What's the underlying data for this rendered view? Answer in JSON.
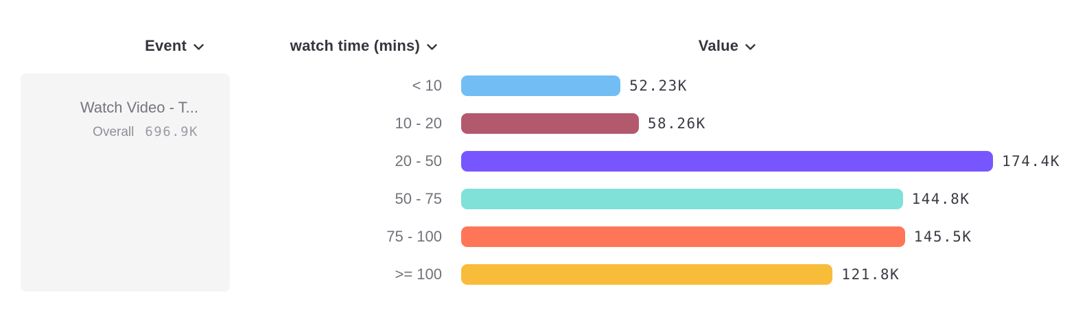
{
  "headers": {
    "event": "Event",
    "breakdown": "watch time (mins)",
    "value": "Value"
  },
  "event_panel": {
    "event_name": "Watch Video - T...",
    "overall_label": "Overall",
    "overall_value": "696.9K"
  },
  "icons": {
    "header_dropdown": "chevron-down"
  },
  "colors": {
    "background": "#FFFFFF",
    "panel_background": "#F5F5F6",
    "header_text": "#35353D",
    "category_text": "#71717A",
    "value_text": "#3B3B44",
    "event_name_text": "#75757D",
    "overall_text": "#95959D"
  },
  "chart_data": {
    "type": "bar",
    "orientation": "horizontal",
    "title": "",
    "xlabel": "Value",
    "ylabel": "watch time (mins)",
    "grid": false,
    "legend": false,
    "categories": [
      "< 10",
      "10 - 20",
      "20 - 50",
      "50 - 75",
      "75 - 100",
      ">= 100"
    ],
    "values": [
      52230,
      58260,
      174400,
      144800,
      145500,
      121800
    ],
    "value_labels": [
      "52.23K",
      "58.26K",
      "174.4K",
      "144.8K",
      "145.5K",
      "121.8K"
    ],
    "bar_colors": [
      "#72BEF4",
      "#B2596E",
      "#7856FF",
      "#80E1D9",
      "#FF7557",
      "#F8BC3B"
    ],
    "xlim": [
      0,
      174400
    ],
    "overall_total_label": "696.9K"
  }
}
